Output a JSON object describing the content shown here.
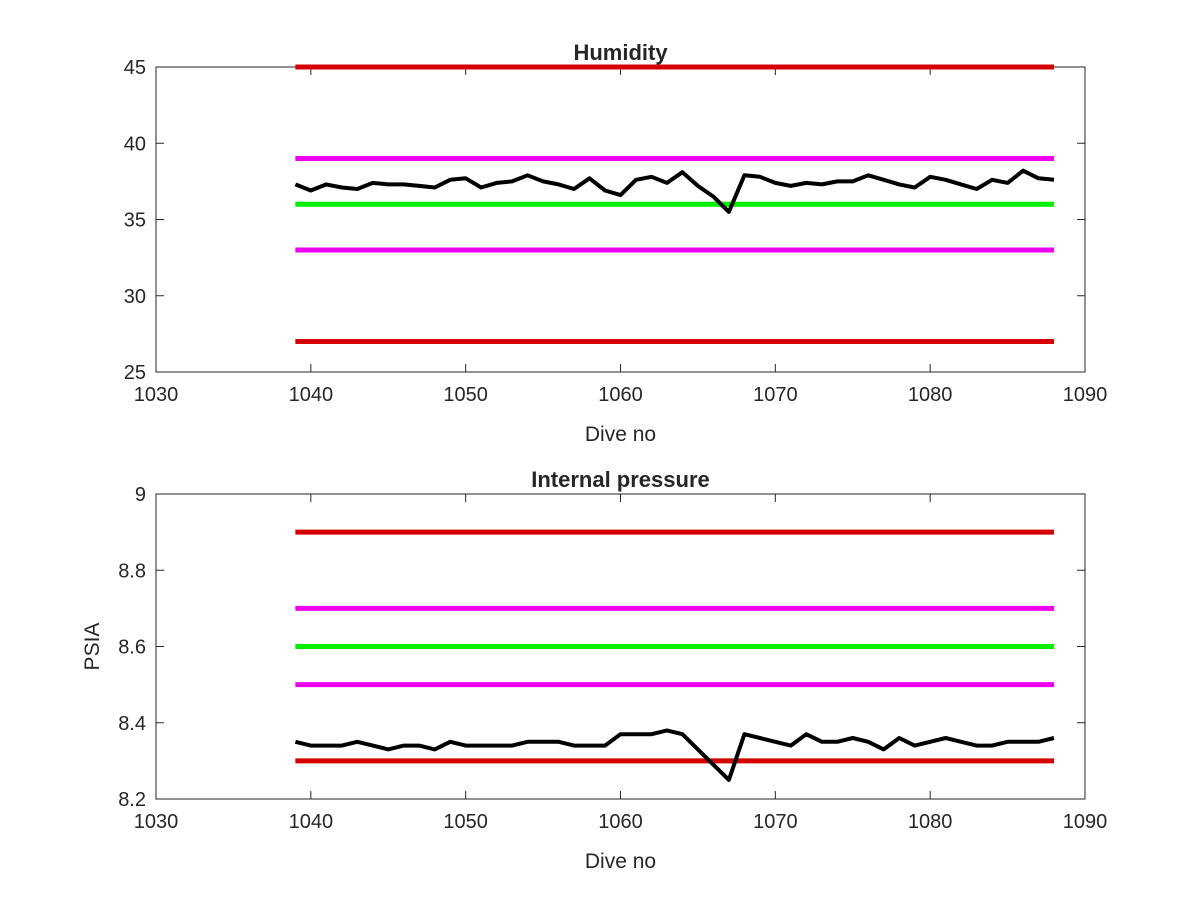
{
  "chart_data": [
    {
      "type": "line",
      "title": "Humidity",
      "xlabel": "Dive no",
      "ylabel": "",
      "xlim": [
        1030,
        1090
      ],
      "ylim": [
        25,
        45
      ],
      "xticks": [
        "1030",
        "1040",
        "1050",
        "1060",
        "1070",
        "1080",
        "1090"
      ],
      "yticks": [
        "25",
        "30",
        "35",
        "40",
        "45"
      ],
      "grid": false,
      "x": [
        1039,
        1040,
        1041,
        1042,
        1043,
        1044,
        1045,
        1046,
        1047,
        1048,
        1049,
        1050,
        1051,
        1052,
        1053,
        1054,
        1055,
        1056,
        1057,
        1058,
        1059,
        1060,
        1061,
        1062,
        1063,
        1064,
        1065,
        1066,
        1067,
        1068,
        1069,
        1070,
        1071,
        1072,
        1073,
        1074,
        1075,
        1076,
        1077,
        1078,
        1079,
        1080,
        1081,
        1082,
        1083,
        1084,
        1085,
        1086,
        1087,
        1088
      ],
      "series": [
        {
          "color": "#000000",
          "values": [
            37.3,
            36.9,
            37.3,
            37.1,
            37.0,
            37.4,
            37.3,
            37.3,
            37.2,
            37.1,
            37.6,
            37.7,
            37.1,
            37.4,
            37.5,
            37.9,
            37.5,
            37.3,
            37.0,
            37.7,
            36.9,
            36.6,
            37.6,
            37.8,
            37.4,
            38.1,
            37.2,
            36.5,
            35.5,
            37.9,
            37.8,
            37.4,
            37.2,
            37.4,
            37.3,
            37.5,
            37.5,
            37.9,
            37.6,
            37.3,
            37.1,
            37.8,
            37.6,
            37.3,
            37.0,
            37.6,
            37.4,
            38.2,
            37.7,
            37.6
          ]
        }
      ],
      "reference_lines": [
        {
          "y": 45,
          "color": "#d40000",
          "x_range": [
            1039,
            1088
          ]
        },
        {
          "y": 39,
          "color": "#ee00ee",
          "x_range": [
            1039,
            1088
          ]
        },
        {
          "y": 36,
          "color": "#00ee00",
          "x_range": [
            1039,
            1088
          ]
        },
        {
          "y": 33,
          "color": "#ee00ee",
          "x_range": [
            1039,
            1088
          ]
        },
        {
          "y": 27,
          "color": "#d40000",
          "x_range": [
            1039,
            1088
          ]
        }
      ]
    },
    {
      "type": "line",
      "title": "Internal pressure",
      "xlabel": "Dive no",
      "ylabel": "PSIA",
      "xlim": [
        1030,
        1090
      ],
      "ylim": [
        8.2,
        9.0
      ],
      "xticks": [
        "1030",
        "1040",
        "1050",
        "1060",
        "1070",
        "1080",
        "1090"
      ],
      "yticks": [
        "8.2",
        "8.4",
        "8.6",
        "8.8",
        "9"
      ],
      "grid": false,
      "x": [
        1039,
        1040,
        1041,
        1042,
        1043,
        1044,
        1045,
        1046,
        1047,
        1048,
        1049,
        1050,
        1051,
        1052,
        1053,
        1054,
        1055,
        1056,
        1057,
        1058,
        1059,
        1060,
        1061,
        1062,
        1063,
        1064,
        1065,
        1066,
        1067,
        1068,
        1069,
        1070,
        1071,
        1072,
        1073,
        1074,
        1075,
        1076,
        1077,
        1078,
        1079,
        1080,
        1081,
        1082,
        1083,
        1084,
        1085,
        1086,
        1087,
        1088
      ],
      "series": [
        {
          "color": "#000000",
          "values": [
            8.35,
            8.34,
            8.34,
            8.34,
            8.35,
            8.34,
            8.33,
            8.34,
            8.34,
            8.33,
            8.35,
            8.34,
            8.34,
            8.34,
            8.34,
            8.35,
            8.35,
            8.35,
            8.34,
            8.34,
            8.34,
            8.37,
            8.37,
            8.37,
            8.38,
            8.37,
            8.33,
            8.29,
            8.25,
            8.37,
            8.36,
            8.35,
            8.34,
            8.37,
            8.35,
            8.35,
            8.36,
            8.35,
            8.33,
            8.36,
            8.34,
            8.35,
            8.36,
            8.35,
            8.34,
            8.34,
            8.35,
            8.35,
            8.35,
            8.36
          ]
        }
      ],
      "reference_lines": [
        {
          "y": 8.9,
          "color": "#d40000",
          "x_range": [
            1039,
            1088
          ]
        },
        {
          "y": 8.7,
          "color": "#ee00ee",
          "x_range": [
            1039,
            1088
          ]
        },
        {
          "y": 8.6,
          "color": "#00ee00",
          "x_range": [
            1039,
            1088
          ]
        },
        {
          "y": 8.5,
          "color": "#ee00ee",
          "x_range": [
            1039,
            1088
          ]
        },
        {
          "y": 8.3,
          "color": "#d40000",
          "x_range": [
            1039,
            1088
          ]
        }
      ]
    }
  ]
}
